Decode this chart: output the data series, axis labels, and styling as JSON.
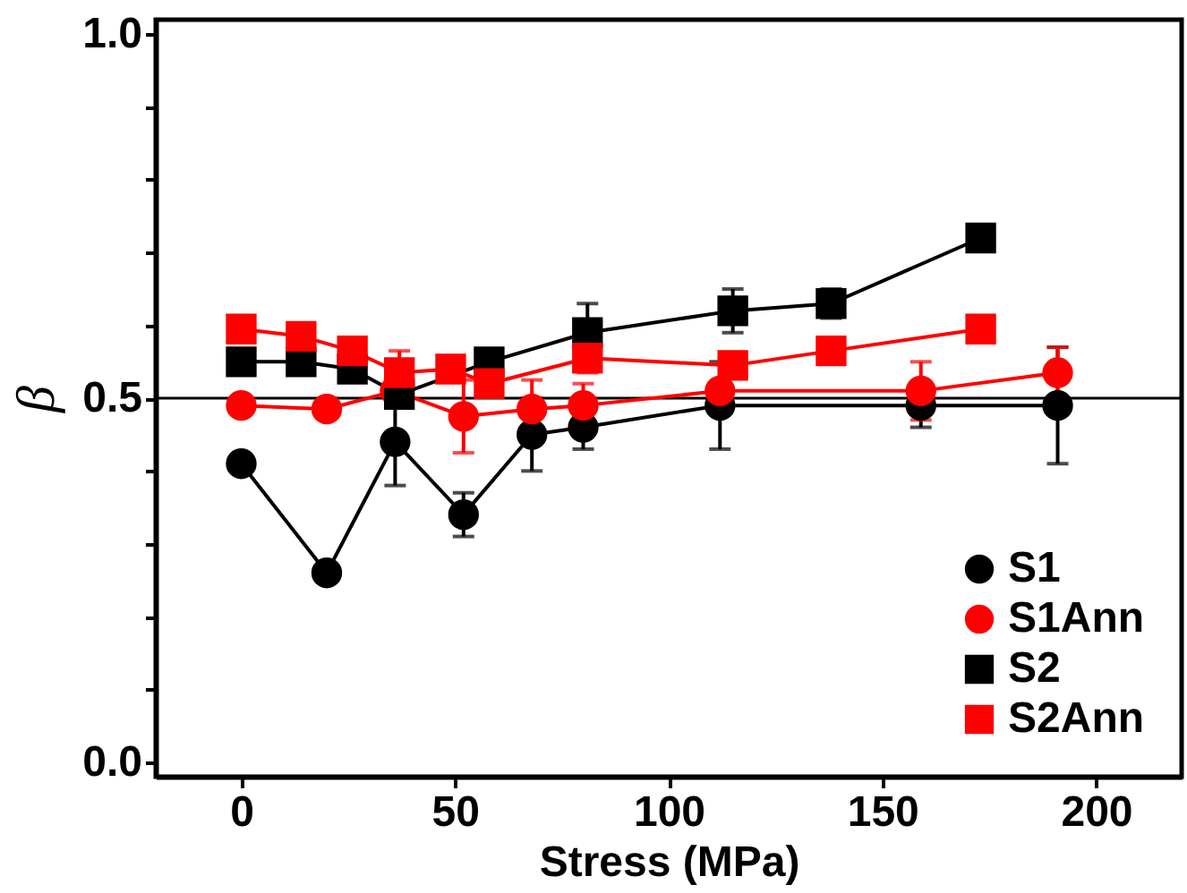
{
  "chart_data": {
    "type": "line",
    "xlabel": "Stress (MPa)",
    "ylabel": "β",
    "xlim": [
      -20,
      220
    ],
    "ylim": [
      -0.02,
      1.02
    ],
    "xticks": [
      0,
      50,
      100,
      150,
      200
    ],
    "yticks": [
      {
        "value": 0,
        "label": "0.0"
      },
      {
        "value": 0.1,
        "label": null
      },
      {
        "value": 0.2,
        "label": null
      },
      {
        "value": 0.3,
        "label": null
      },
      {
        "value": 0.4,
        "label": null
      },
      {
        "value": 0.5,
        "label": "0.5"
      },
      {
        "value": 0.6,
        "label": null
      },
      {
        "value": 0.7,
        "label": null
      },
      {
        "value": 0.8,
        "label": null
      },
      {
        "value": 0.9,
        "label": null
      },
      {
        "value": 1,
        "label": "1.0"
      }
    ],
    "grid": false,
    "legend": "bottom right",
    "line_style": "solid",
    "ref_lines": [
      {
        "axis": "y",
        "value": 0.5,
        "color": "#000000"
      }
    ],
    "series": [
      {
        "name": "S1",
        "color": "#000000",
        "marker": "circle",
        "x": [
          0,
          20,
          36,
          52,
          68,
          80,
          112,
          159,
          191
        ],
        "values": [
          0.41,
          0.26,
          0.44,
          0.34,
          0.45,
          0.46,
          0.49,
          0.49,
          0.49
        ],
        "errors": [
          null,
          null,
          0.06,
          0.03,
          0.05,
          0.03,
          0.06,
          0.03,
          0.08
        ]
      },
      {
        "name": "S1Ann",
        "color": "#ff0000",
        "marker": "circle",
        "x": [
          0,
          20,
          36,
          52,
          68,
          80,
          112,
          159,
          191
        ],
        "values": [
          0.49,
          0.485,
          0.51,
          0.475,
          0.485,
          0.49,
          0.51,
          0.51,
          0.535
        ],
        "errors": [
          null,
          null,
          null,
          0.05,
          0.04,
          0.03,
          null,
          0.04,
          0.035
        ]
      },
      {
        "name": "S2",
        "color": "#000000",
        "marker": "square",
        "x": [
          0,
          14,
          26,
          37,
          58,
          81,
          115,
          138,
          173
        ],
        "values": [
          0.55,
          0.55,
          0.54,
          0.505,
          0.55,
          0.59,
          0.62,
          0.63,
          0.72
        ],
        "errors": [
          null,
          null,
          null,
          null,
          null,
          0.04,
          0.03,
          0.02,
          0.01
        ]
      },
      {
        "name": "S2Ann",
        "color": "#ff0000",
        "marker": "square",
        "x": [
          0,
          14,
          26,
          37,
          49,
          58,
          81,
          115,
          138,
          173
        ],
        "values": [
          0.595,
          0.585,
          0.565,
          0.535,
          0.54,
          0.52,
          0.555,
          0.545,
          0.565,
          0.595
        ],
        "errors": [
          null,
          null,
          null,
          0.03,
          null,
          null,
          0.02,
          null,
          null,
          null
        ]
      }
    ]
  }
}
